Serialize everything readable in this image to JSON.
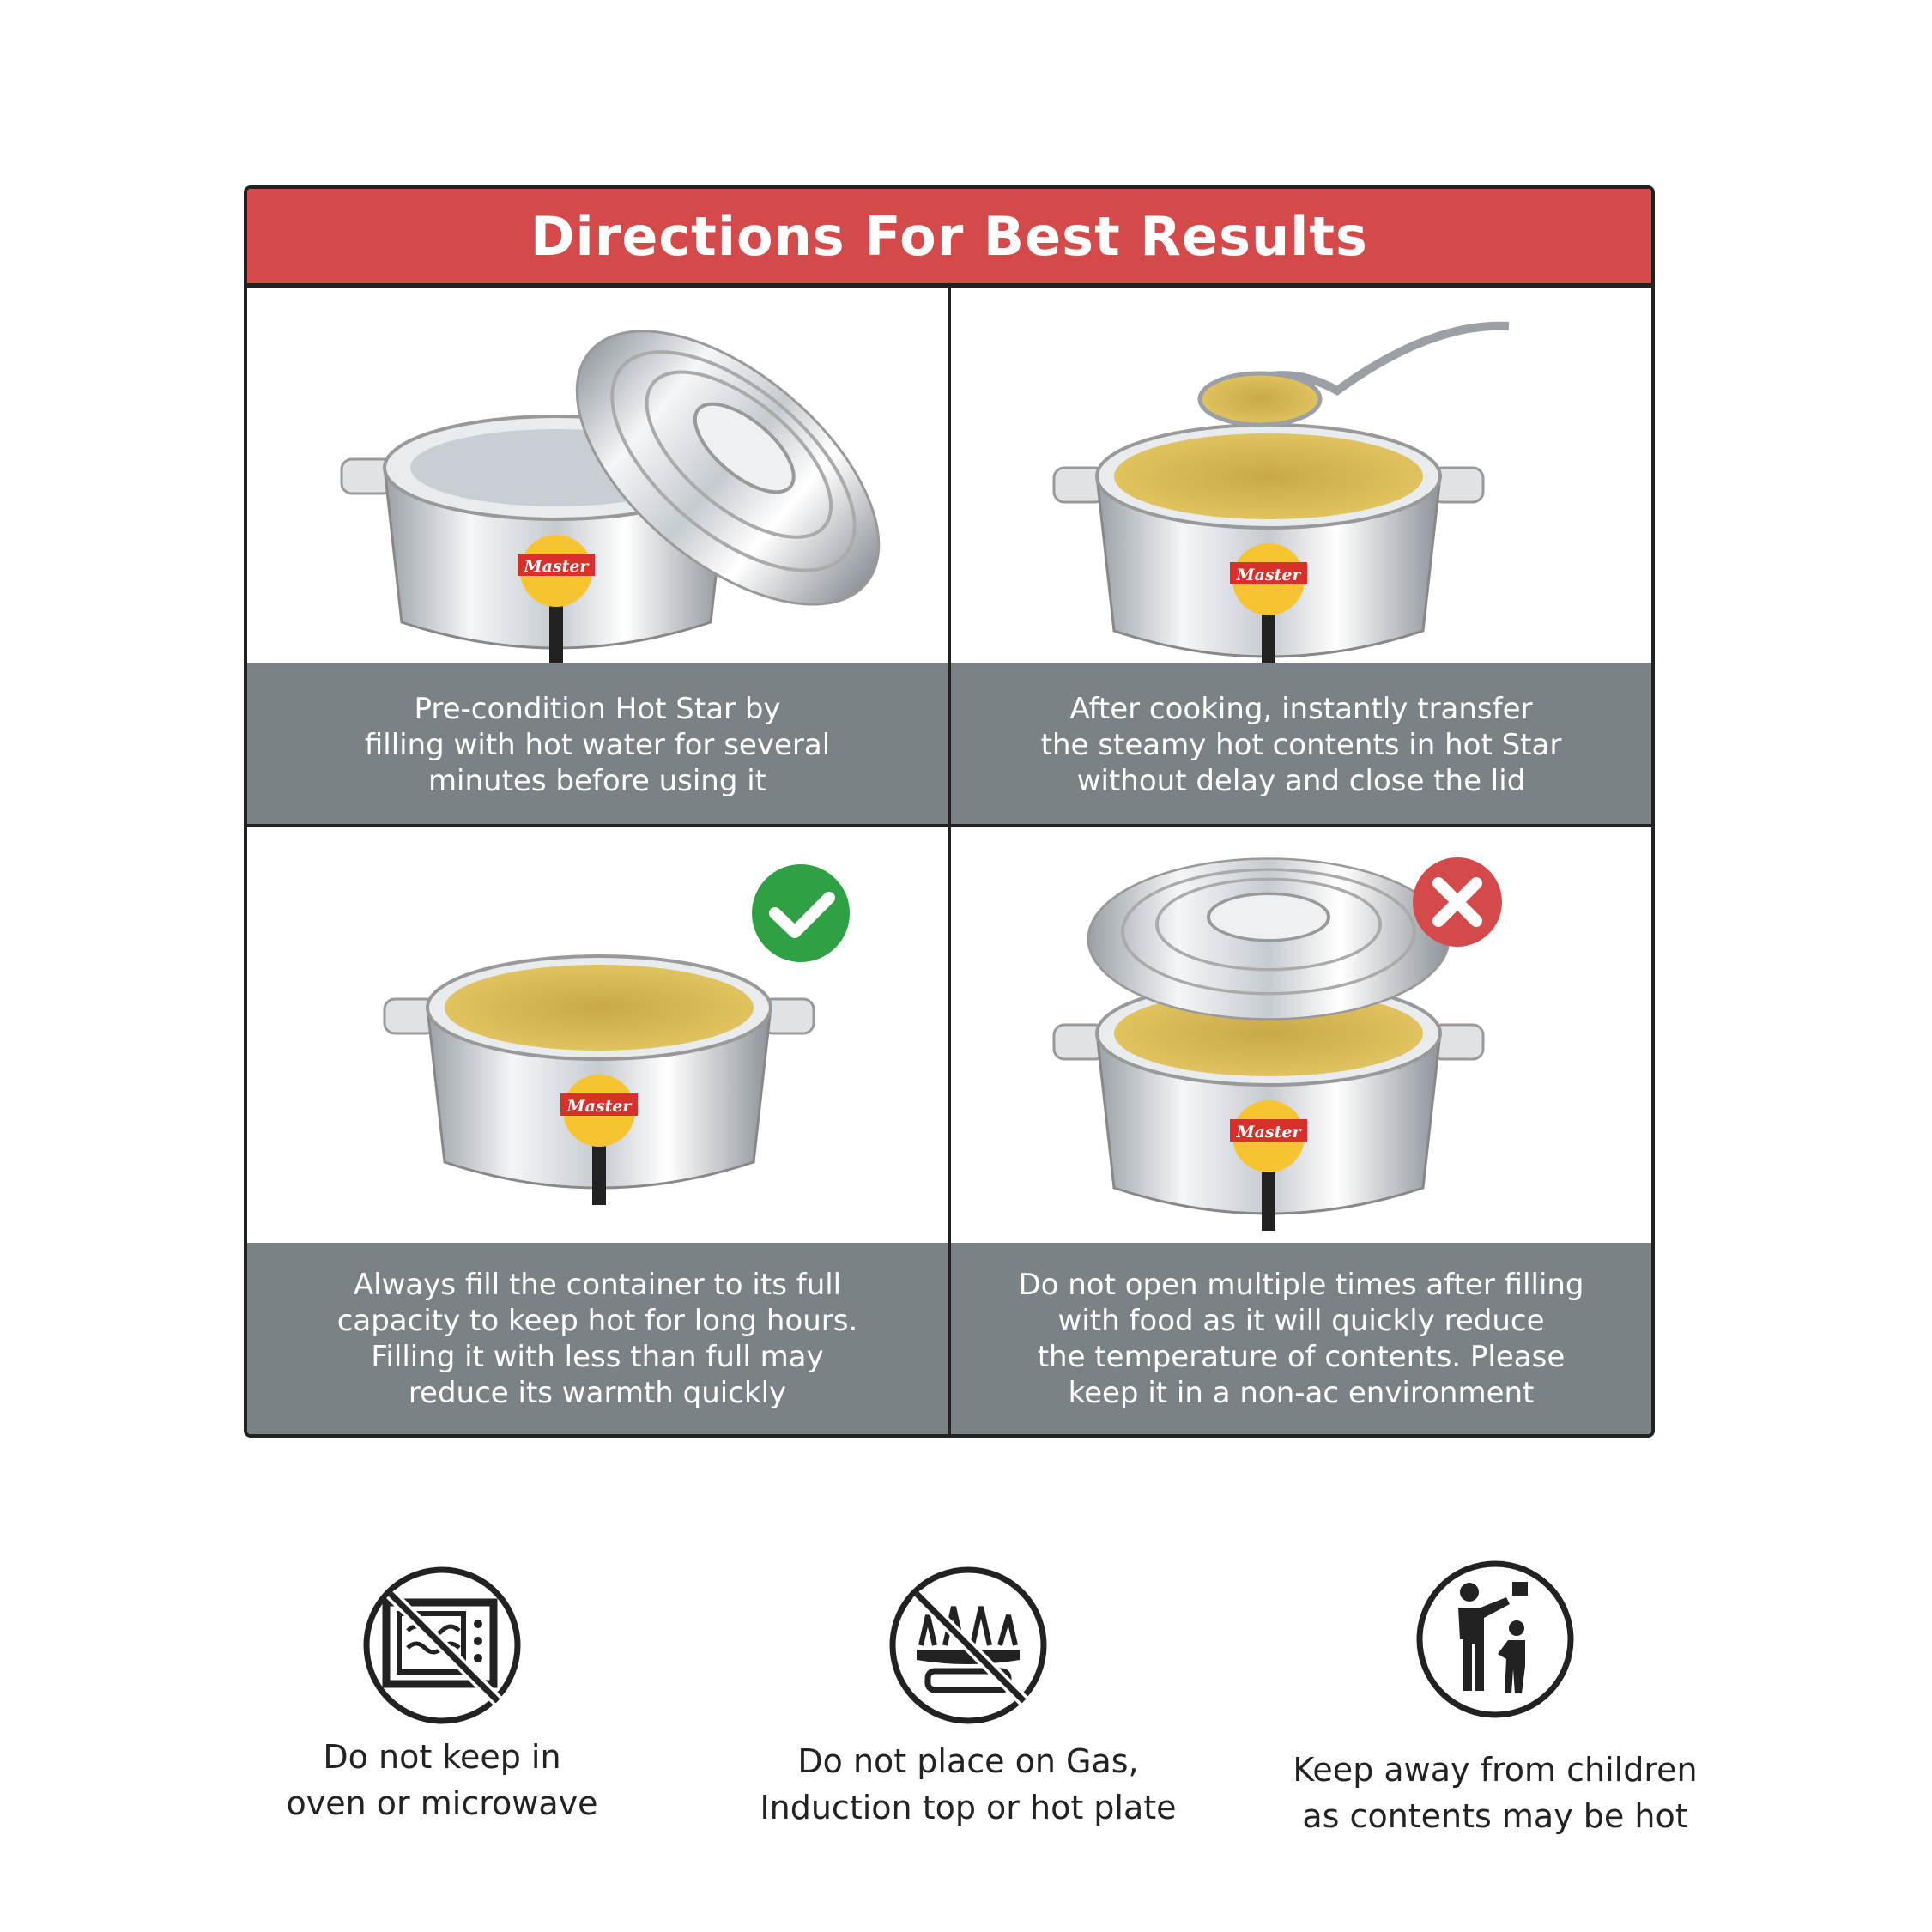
{
  "header": {
    "title": "Directions For Best Results"
  },
  "steps": [
    {
      "text": "Pre-condition Hot Star by\nfilling with hot water for several\nminutes before using it",
      "image": "open-casserole-with-lid"
    },
    {
      "text": "After cooking, instantly transfer\nthe steamy hot contents in hot Star\nwithout delay and close the lid",
      "image": "casserole-with-food-and-spoon"
    },
    {
      "text": "Always fill the container to its full\ncapacity to keep hot for long hours.\nFilling it with less than full may\nreduce its warmth quickly",
      "image": "full-casserole",
      "badge": "check-icon"
    },
    {
      "text": "Do not open multiple times after filling\nwith food as it will quickly reduce\nthe temperature of contents. Please\nkeep it in a non-ac environment",
      "image": "casserole-lid-lifted",
      "badge": "cross-icon"
    }
  ],
  "brand_label": "Master",
  "warnings": [
    {
      "icon": "no-microwave-icon",
      "text": "Do not keep in\noven or microwave"
    },
    {
      "icon": "no-gas-stove-icon",
      "text": "Do not place on Gas,\nInduction top or hot plate"
    },
    {
      "icon": "keep-away-children-icon",
      "text": "Keep away from children\nas contents may be hot"
    }
  ],
  "colors": {
    "header": "#d44949",
    "band": "#7b8285",
    "check": "#2fa043",
    "cross": "#d44949"
  }
}
